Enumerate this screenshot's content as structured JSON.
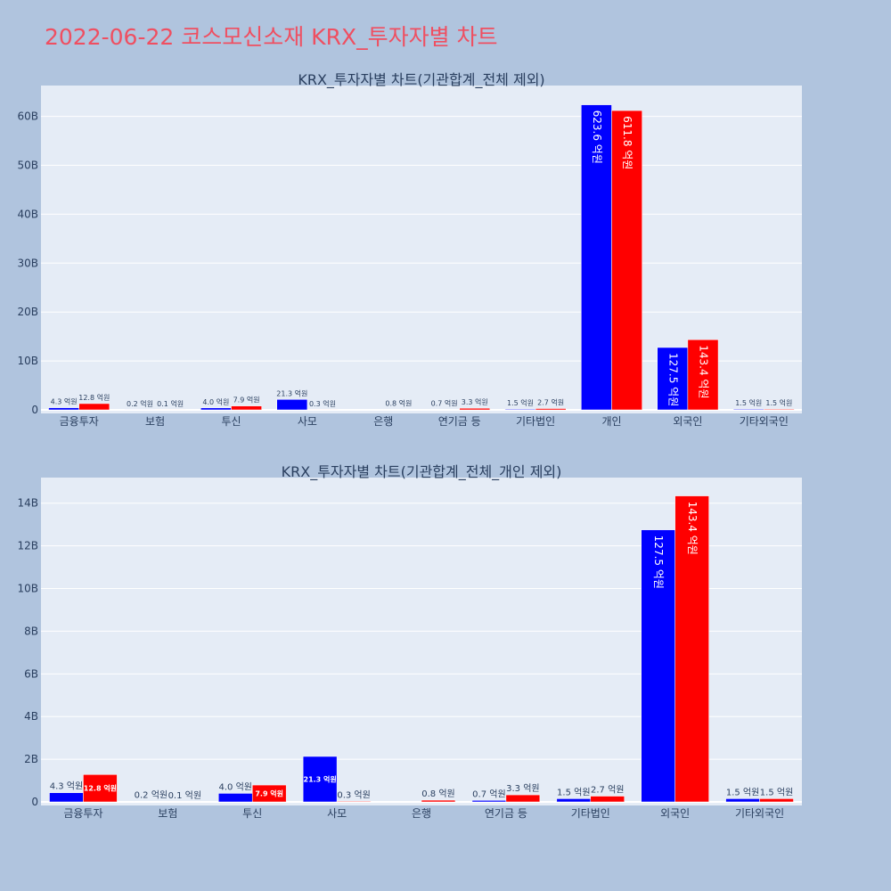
{
  "page_title": "2022-06-22 코스모신소재 KRX_투자자별 차트",
  "colors": {
    "buy": "#0000ff",
    "sell": "#ff0000",
    "plot_bg": "#e5ecf6",
    "page_bg": "#b0c4de",
    "title": "#ef4f61"
  },
  "chart_data": [
    {
      "type": "bar",
      "title": "KRX_투자자별 차트(기관합계_전체 제외)",
      "categories": [
        "금융투자",
        "보험",
        "투신",
        "사모",
        "은행",
        "연기금 등",
        "기타법인",
        "개인",
        "외국인",
        "기타외국인"
      ],
      "series": [
        {
          "values": [
            0.43,
            0.02,
            0.4,
            2.13,
            0.0,
            0.07,
            0.15,
            62.36,
            12.75,
            0.15
          ],
          "labels": [
            "4.3 억원",
            "0.2 억원",
            "4.0 억원",
            "21.3 억원",
            "",
            "0.7 억원",
            "1.5 억원",
            "623.6 억원",
            "127.5 억원",
            "1.5 억원"
          ]
        },
        {
          "values": [
            1.28,
            0.01,
            0.79,
            0.03,
            0.08,
            0.33,
            0.27,
            61.18,
            14.34,
            0.15
          ],
          "labels": [
            "12.8 억원",
            "0.1 억원",
            "7.9 억원",
            "0.3 억원",
            "0.8 억원",
            "3.3 억원",
            "2.7 억원",
            "611.8 억원",
            "143.4 억원",
            "1.5 억원"
          ]
        }
      ],
      "yticks": [
        0,
        10,
        20,
        30,
        40,
        50,
        60
      ],
      "ytick_labels": [
        "0",
        "10B",
        "20B",
        "30B",
        "40B",
        "50B",
        "60B"
      ],
      "ylim": [
        0,
        66.3
      ]
    },
    {
      "type": "bar",
      "title": "KRX_투자자별 차트(기관합계_전체_개인 제외)",
      "categories": [
        "금융투자",
        "보험",
        "투신",
        "사모",
        "은행",
        "연기금 등",
        "기타법인",
        "외국인",
        "기타외국인"
      ],
      "series": [
        {
          "values": [
            0.43,
            0.02,
            0.4,
            2.13,
            0.0,
            0.07,
            0.15,
            12.75,
            0.15
          ],
          "labels": [
            "4.3 억원",
            "0.2 억원",
            "4.0 억원",
            "21.3 억원",
            "",
            "0.7 억원",
            "1.5 억원",
            "127.5 억원",
            "1.5 억원"
          ]
        },
        {
          "values": [
            1.28,
            0.01,
            0.79,
            0.03,
            0.08,
            0.33,
            0.27,
            14.34,
            0.15
          ],
          "labels": [
            "12.8 억원",
            "0.1 억원",
            "7.9 억원",
            "0.3 억원",
            "0.8 억원",
            "3.3 억원",
            "2.7 억원",
            "143.4 억원",
            "1.5 억원"
          ]
        }
      ],
      "yticks": [
        0,
        2,
        4,
        6,
        8,
        10,
        12,
        14
      ],
      "ytick_labels": [
        "0",
        "2B",
        "4B",
        "6B",
        "8B",
        "10B",
        "12B",
        "14B"
      ],
      "ylim": [
        0,
        15.2
      ]
    }
  ]
}
